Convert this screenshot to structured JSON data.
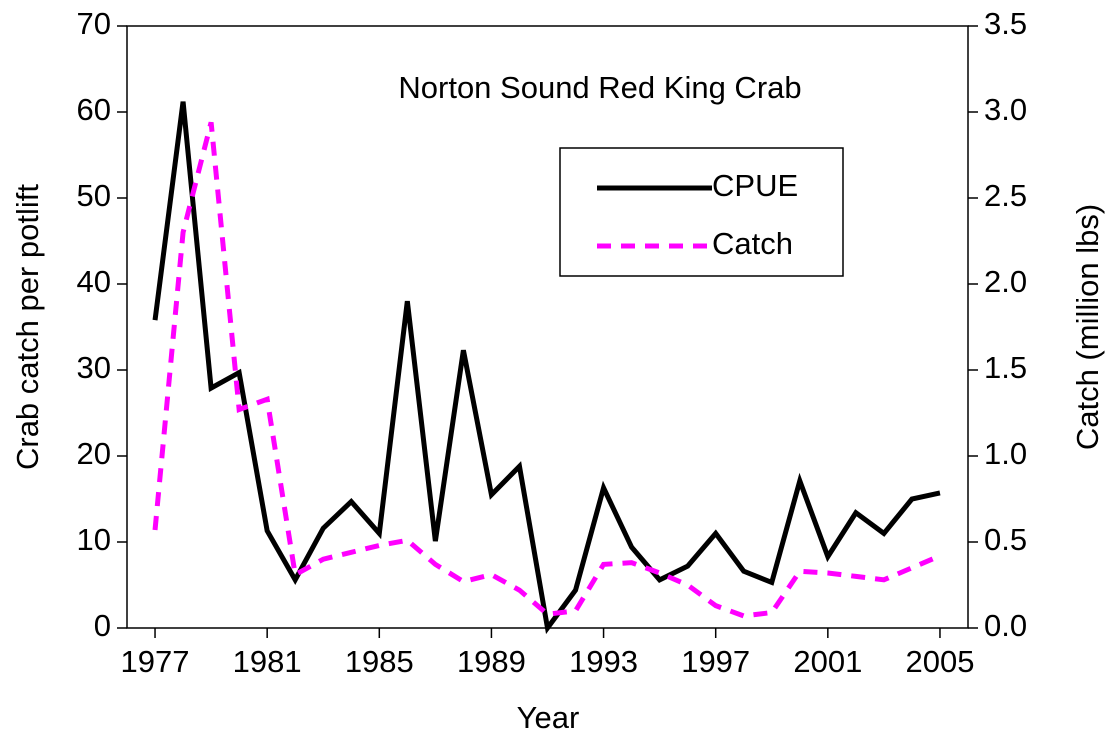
{
  "chart_data": {
    "type": "line",
    "title": "Norton Sound Red King Crab",
    "xlabel": "Year",
    "ylabel": "Crab catch per potlift",
    "y2label": "Catch (million lbs)",
    "x": [
      1977,
      1978,
      1979,
      1980,
      1981,
      1982,
      1983,
      1984,
      1985,
      1986,
      1987,
      1988,
      1989,
      1990,
      1991,
      1992,
      1993,
      1994,
      1995,
      1996,
      1997,
      1998,
      1999,
      2000,
      2001,
      2002,
      2003,
      2004,
      2005
    ],
    "series": [
      {
        "name": "CPUE",
        "color": "#000000",
        "dash": "solid",
        "values": [
          35.8,
          61.2,
          27.9,
          29.7,
          11.3,
          5.6,
          11.6,
          14.7,
          11.0,
          38.0,
          10.1,
          32.3,
          15.5,
          18.8,
          0,
          4.4,
          16.3,
          9.4,
          5.6,
          7.2,
          11.0,
          6.6,
          5.3,
          17.1,
          8.3,
          13.4,
          11.0,
          15.0,
          15.7
        ]
      },
      {
        "name": "Catch",
        "color": "#ff00ff",
        "dash": "dashed",
        "axis": "y2",
        "values": [
          0.57,
          2.3,
          2.94,
          1.27,
          1.33,
          0.31,
          0.4,
          0.44,
          0.48,
          0.51,
          0.37,
          0.27,
          0.31,
          0.22,
          0.08,
          0.1,
          0.37,
          0.38,
          0.32,
          0.25,
          0.13,
          0.07,
          0.09,
          0.33,
          0.32,
          0.3,
          0.28,
          0.35,
          0.42
        ]
      }
    ],
    "xlim": [
      1976,
      2006
    ],
    "xticks": [
      1977,
      1981,
      1985,
      1989,
      1993,
      1997,
      2001,
      2005
    ],
    "ylim": [
      0,
      70
    ],
    "yticks": [
      0,
      10,
      20,
      30,
      40,
      50,
      60,
      70
    ],
    "y2lim": [
      0,
      3.5
    ],
    "y2ticks": [
      {
        "value": 0,
        "label": "0.0"
      },
      0.5,
      {
        "value": 1,
        "label": "1.0"
      },
      1.5,
      {
        "value": 2,
        "label": "2.0"
      },
      2.5,
      {
        "value": 3,
        "label": "3.0"
      },
      3.5
    ],
    "legend": "upper right",
    "grid": false
  }
}
